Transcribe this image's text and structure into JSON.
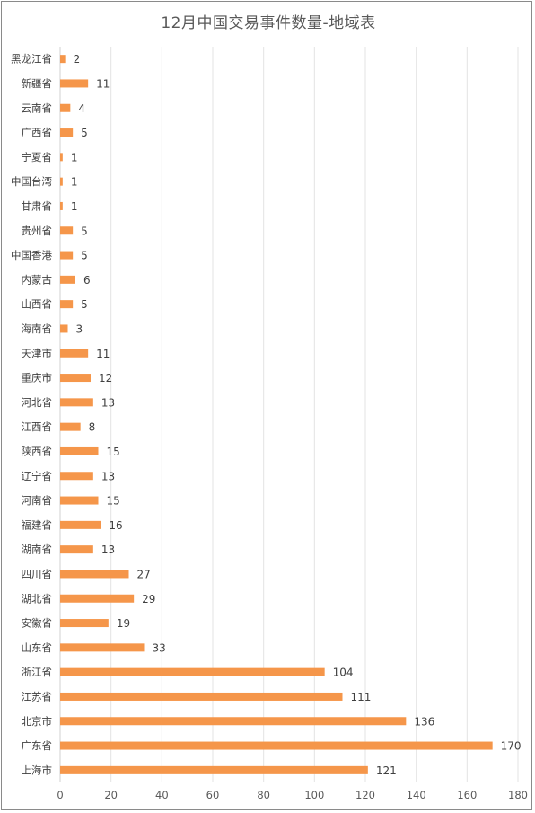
{
  "chart_data": {
    "type": "bar",
    "orientation": "horizontal",
    "title": "12月中国交易事件数量-地域表",
    "xlim": [
      0,
      180
    ],
    "xticks": [
      0,
      20,
      40,
      60,
      80,
      100,
      120,
      140,
      160,
      180
    ],
    "grid": "vertical",
    "bar_color": "#F5964A",
    "categories": [
      "黑龙江省",
      "新疆省",
      "云南省",
      "广西省",
      "宁夏省",
      "中国台湾",
      "甘肃省",
      "贵州省",
      "中国香港",
      "内蒙古",
      "山西省",
      "海南省",
      "天津市",
      "重庆市",
      "河北省",
      "江西省",
      "陕西省",
      "辽宁省",
      "河南省",
      "福建省",
      "湖南省",
      "四川省",
      "湖北省",
      "安徽省",
      "山东省",
      "浙江省",
      "江苏省",
      "北京市",
      "广东省",
      "上海市"
    ],
    "values": [
      2,
      11,
      4,
      5,
      1,
      1,
      1,
      5,
      5,
      6,
      5,
      3,
      11,
      12,
      13,
      8,
      15,
      13,
      15,
      16,
      13,
      27,
      29,
      19,
      33,
      104,
      111,
      136,
      170,
      121
    ]
  }
}
